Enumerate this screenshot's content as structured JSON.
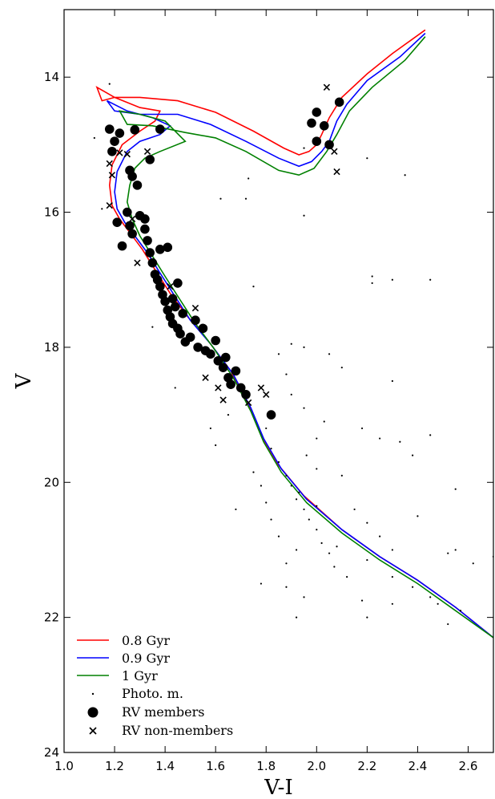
{
  "chart_data": {
    "type": "scatter",
    "title": "",
    "xlabel": "V-I",
    "ylabel": "V",
    "xlim": [
      1.0,
      2.7
    ],
    "ylim": [
      24,
      13
    ],
    "y_inverted": true,
    "xticks": [
      "1.0",
      "1.2",
      "1.4",
      "1.6",
      "1.8",
      "2.0",
      "2.2",
      "2.4",
      "2.6"
    ],
    "yticks": [
      "14",
      "16",
      "18",
      "20",
      "22",
      "24"
    ],
    "legend": {
      "position": "lower-left",
      "entries": [
        {
          "label": "0.8 Gyr",
          "kind": "line",
          "color": "#ff0000"
        },
        {
          "label": "0.9 Gyr",
          "kind": "line",
          "color": "#0000ff"
        },
        {
          "label": "1 Gyr",
          "kind": "line",
          "color": "#008000"
        },
        {
          "label": "Photo. m.",
          "kind": "dot"
        },
        {
          "label": "RV members",
          "kind": "circle"
        },
        {
          "label": "RV non-members",
          "kind": "cross"
        }
      ]
    },
    "isochrones": [
      {
        "name": "0.8 Gyr",
        "color": "#ff0000",
        "points": [
          [
            2.43,
            13.3
          ],
          [
            2.3,
            13.65
          ],
          [
            2.2,
            13.95
          ],
          [
            2.1,
            14.3
          ],
          [
            2.05,
            14.6
          ],
          [
            2.02,
            14.85
          ],
          [
            2.0,
            15.0
          ],
          [
            1.97,
            15.1
          ],
          [
            1.93,
            15.15
          ],
          [
            1.87,
            15.05
          ],
          [
            1.75,
            14.8
          ],
          [
            1.6,
            14.52
          ],
          [
            1.45,
            14.35
          ],
          [
            1.3,
            14.3
          ],
          [
            1.2,
            14.3
          ],
          [
            1.15,
            14.35
          ],
          [
            1.13,
            14.15
          ],
          [
            1.2,
            14.3
          ],
          [
            1.3,
            14.45
          ],
          [
            1.38,
            14.5
          ],
          [
            1.36,
            14.65
          ],
          [
            1.3,
            14.8
          ],
          [
            1.23,
            15.0
          ],
          [
            1.19,
            15.3
          ],
          [
            1.18,
            15.6
          ],
          [
            1.19,
            15.9
          ],
          [
            1.22,
            16.1
          ],
          [
            1.26,
            16.3
          ],
          [
            1.31,
            16.55
          ],
          [
            1.36,
            16.85
          ],
          [
            1.42,
            17.2
          ],
          [
            1.49,
            17.55
          ],
          [
            1.57,
            17.9
          ],
          [
            1.66,
            18.35
          ],
          [
            1.73,
            18.85
          ],
          [
            1.78,
            19.3
          ],
          [
            1.85,
            19.75
          ],
          [
            1.95,
            20.2
          ],
          [
            2.1,
            20.7
          ],
          [
            2.25,
            21.1
          ],
          [
            2.4,
            21.45
          ],
          [
            2.55,
            21.85
          ],
          [
            2.7,
            22.3
          ]
        ]
      },
      {
        "name": "0.9 Gyr",
        "color": "#0000ff",
        "points": [
          [
            2.43,
            13.35
          ],
          [
            2.33,
            13.7
          ],
          [
            2.2,
            14.05
          ],
          [
            2.12,
            14.4
          ],
          [
            2.08,
            14.65
          ],
          [
            2.05,
            14.95
          ],
          [
            2.02,
            15.1
          ],
          [
            1.98,
            15.25
          ],
          [
            1.93,
            15.32
          ],
          [
            1.85,
            15.2
          ],
          [
            1.72,
            14.95
          ],
          [
            1.58,
            14.7
          ],
          [
            1.45,
            14.55
          ],
          [
            1.3,
            14.55
          ],
          [
            1.2,
            14.5
          ],
          [
            1.17,
            14.35
          ],
          [
            1.25,
            14.5
          ],
          [
            1.35,
            14.6
          ],
          [
            1.42,
            14.72
          ],
          [
            1.38,
            14.85
          ],
          [
            1.3,
            14.95
          ],
          [
            1.25,
            15.1
          ],
          [
            1.21,
            15.4
          ],
          [
            1.2,
            15.7
          ],
          [
            1.21,
            15.95
          ],
          [
            1.24,
            16.15
          ],
          [
            1.28,
            16.35
          ],
          [
            1.33,
            16.6
          ],
          [
            1.38,
            16.9
          ],
          [
            1.44,
            17.25
          ],
          [
            1.5,
            17.6
          ],
          [
            1.58,
            17.95
          ],
          [
            1.67,
            18.4
          ],
          [
            1.74,
            18.9
          ],
          [
            1.79,
            19.35
          ],
          [
            1.86,
            19.8
          ],
          [
            1.96,
            20.25
          ],
          [
            2.1,
            20.7
          ],
          [
            2.25,
            21.1
          ],
          [
            2.4,
            21.45
          ],
          [
            2.55,
            21.85
          ],
          [
            2.7,
            22.3
          ]
        ]
      },
      {
        "name": "1 Gyr",
        "color": "#008000",
        "points": [
          [
            2.43,
            13.4
          ],
          [
            2.35,
            13.75
          ],
          [
            2.22,
            14.15
          ],
          [
            2.13,
            14.5
          ],
          [
            2.08,
            14.85
          ],
          [
            2.04,
            15.1
          ],
          [
            1.99,
            15.35
          ],
          [
            1.93,
            15.45
          ],
          [
            1.85,
            15.38
          ],
          [
            1.72,
            15.1
          ],
          [
            1.6,
            14.9
          ],
          [
            1.48,
            14.82
          ],
          [
            1.35,
            14.72
          ],
          [
            1.25,
            14.7
          ],
          [
            1.22,
            14.5
          ],
          [
            1.3,
            14.55
          ],
          [
            1.4,
            14.65
          ],
          [
            1.48,
            14.95
          ],
          [
            1.38,
            15.1
          ],
          [
            1.32,
            15.2
          ],
          [
            1.28,
            15.35
          ],
          [
            1.26,
            15.6
          ],
          [
            1.25,
            15.85
          ],
          [
            1.27,
            16.1
          ],
          [
            1.3,
            16.35
          ],
          [
            1.35,
            16.65
          ],
          [
            1.4,
            16.95
          ],
          [
            1.46,
            17.3
          ],
          [
            1.52,
            17.65
          ],
          [
            1.59,
            18.0
          ],
          [
            1.67,
            18.45
          ],
          [
            1.74,
            18.95
          ],
          [
            1.79,
            19.4
          ],
          [
            1.86,
            19.85
          ],
          [
            1.96,
            20.3
          ],
          [
            2.1,
            20.75
          ],
          [
            2.25,
            21.15
          ],
          [
            2.4,
            21.5
          ],
          [
            2.55,
            21.9
          ],
          [
            2.7,
            22.3
          ]
        ]
      }
    ],
    "rv_members": [
      [
        1.18,
        14.77
      ],
      [
        1.19,
        15.1
      ],
      [
        1.2,
        14.95
      ],
      [
        1.22,
        14.83
      ],
      [
        1.28,
        14.78
      ],
      [
        1.38,
        14.77
      ],
      [
        1.34,
        15.22
      ],
      [
        1.26,
        15.38
      ],
      [
        1.27,
        15.47
      ],
      [
        1.29,
        15.6
      ],
      [
        1.21,
        16.15
      ],
      [
        1.25,
        16.0
      ],
      [
        1.26,
        16.2
      ],
      [
        1.27,
        16.32
      ],
      [
        1.23,
        16.5
      ],
      [
        1.3,
        16.05
      ],
      [
        1.32,
        16.1
      ],
      [
        1.32,
        16.25
      ],
      [
        1.33,
        16.42
      ],
      [
        1.34,
        16.6
      ],
      [
        1.35,
        16.75
      ],
      [
        1.36,
        16.92
      ],
      [
        1.37,
        17.0
      ],
      [
        1.38,
        16.55
      ],
      [
        1.38,
        17.1
      ],
      [
        1.39,
        17.22
      ],
      [
        1.4,
        17.32
      ],
      [
        1.41,
        17.45
      ],
      [
        1.42,
        17.55
      ],
      [
        1.43,
        17.65
      ],
      [
        1.44,
        17.4
      ],
      [
        1.45,
        17.72
      ],
      [
        1.46,
        17.8
      ],
      [
        1.47,
        17.5
      ],
      [
        1.48,
        17.92
      ],
      [
        1.5,
        17.85
      ],
      [
        1.52,
        17.6
      ],
      [
        1.53,
        18.0
      ],
      [
        1.55,
        17.72
      ],
      [
        1.56,
        18.05
      ],
      [
        1.58,
        18.1
      ],
      [
        1.6,
        17.9
      ],
      [
        1.61,
        18.2
      ],
      [
        1.63,
        18.3
      ],
      [
        1.64,
        18.15
      ],
      [
        1.65,
        18.45
      ],
      [
        1.66,
        18.55
      ],
      [
        1.68,
        18.35
      ],
      [
        1.7,
        18.6
      ],
      [
        1.72,
        18.7
      ],
      [
        1.82,
        19.0
      ],
      [
        1.98,
        14.68
      ],
      [
        2.0,
        14.52
      ],
      [
        2.03,
        14.72
      ],
      [
        2.05,
        15.0
      ],
      [
        2.09,
        14.37
      ],
      [
        2.0,
        14.95
      ],
      [
        1.41,
        16.52
      ],
      [
        1.45,
        17.05
      ],
      [
        1.43,
        17.28
      ]
    ],
    "rv_nonmembers": [
      [
        1.18,
        15.9
      ],
      [
        1.22,
        15.12
      ],
      [
        1.25,
        15.14
      ],
      [
        1.18,
        15.28
      ],
      [
        1.19,
        15.45
      ],
      [
        1.33,
        15.1
      ],
      [
        1.27,
        16.1
      ],
      [
        1.29,
        16.75
      ],
      [
        1.42,
        17.1
      ],
      [
        1.52,
        17.42
      ],
      [
        1.56,
        18.45
      ],
      [
        1.63,
        18.78
      ],
      [
        1.73,
        18.82
      ],
      [
        1.78,
        18.6
      ],
      [
        1.8,
        18.7
      ],
      [
        2.04,
        14.15
      ],
      [
        2.07,
        15.1
      ],
      [
        2.08,
        15.4
      ],
      [
        1.61,
        18.6
      ]
    ],
    "photometric_members": [
      [
        1.12,
        14.9
      ],
      [
        1.18,
        14.1
      ],
      [
        1.15,
        15.95
      ],
      [
        1.35,
        17.7
      ],
      [
        1.44,
        18.6
      ],
      [
        1.62,
        15.8
      ],
      [
        1.73,
        15.5
      ],
      [
        1.72,
        15.8
      ],
      [
        1.95,
        15.05
      ],
      [
        1.95,
        16.05
      ],
      [
        1.98,
        14.7
      ],
      [
        2.2,
        15.2
      ],
      [
        2.35,
        15.45
      ],
      [
        2.45,
        17.0
      ],
      [
        2.3,
        17.0
      ],
      [
        2.22,
        16.95
      ],
      [
        2.22,
        17.05
      ],
      [
        1.75,
        17.1
      ],
      [
        1.95,
        18.0
      ],
      [
        1.9,
        17.95
      ],
      [
        2.05,
        18.1
      ],
      [
        2.1,
        18.3
      ],
      [
        2.3,
        18.5
      ],
      [
        1.85,
        18.1
      ],
      [
        1.88,
        18.4
      ],
      [
        1.9,
        18.7
      ],
      [
        1.95,
        18.9
      ],
      [
        2.03,
        19.1
      ],
      [
        2.0,
        19.35
      ],
      [
        2.18,
        19.2
      ],
      [
        2.25,
        19.35
      ],
      [
        2.33,
        19.4
      ],
      [
        2.45,
        19.3
      ],
      [
        2.38,
        19.6
      ],
      [
        1.8,
        19.2
      ],
      [
        1.82,
        19.5
      ],
      [
        1.85,
        19.7
      ],
      [
        1.88,
        19.9
      ],
      [
        1.9,
        20.05
      ],
      [
        1.92,
        20.25
      ],
      [
        1.95,
        20.4
      ],
      [
        1.97,
        20.55
      ],
      [
        2.0,
        20.7
      ],
      [
        2.02,
        20.9
      ],
      [
        2.05,
        21.05
      ],
      [
        2.07,
        21.25
      ],
      [
        1.92,
        21.0
      ],
      [
        1.88,
        21.2
      ],
      [
        1.85,
        20.8
      ],
      [
        1.82,
        20.55
      ],
      [
        1.8,
        20.3
      ],
      [
        1.78,
        20.05
      ],
      [
        1.75,
        19.85
      ],
      [
        1.96,
        19.6
      ],
      [
        2.0,
        19.8
      ],
      [
        2.1,
        19.9
      ],
      [
        2.15,
        20.4
      ],
      [
        2.2,
        20.6
      ],
      [
        2.25,
        20.8
      ],
      [
        2.3,
        21.0
      ],
      [
        2.2,
        21.15
      ],
      [
        2.3,
        21.4
      ],
      [
        2.38,
        21.55
      ],
      [
        2.4,
        20.5
      ],
      [
        2.45,
        21.7
      ],
      [
        2.52,
        21.05
      ],
      [
        2.55,
        21.0
      ],
      [
        2.62,
        21.2
      ],
      [
        2.57,
        21.9
      ],
      [
        2.52,
        22.1
      ],
      [
        2.2,
        22.0
      ],
      [
        1.95,
        21.7
      ],
      [
        1.88,
        21.55
      ],
      [
        1.92,
        22.0
      ],
      [
        1.78,
        21.5
      ],
      [
        1.68,
        20.4
      ],
      [
        1.6,
        19.45
      ],
      [
        1.58,
        19.2
      ],
      [
        1.65,
        19.0
      ],
      [
        2.7,
        21.1
      ],
      [
        2.55,
        20.1
      ],
      [
        2.48,
        21.8
      ],
      [
        2.3,
        21.8
      ],
      [
        2.18,
        21.75
      ],
      [
        2.12,
        21.4
      ],
      [
        2.08,
        20.95
      ],
      [
        2.0,
        20.35
      ],
      [
        1.93,
        20.15
      ]
    ]
  }
}
